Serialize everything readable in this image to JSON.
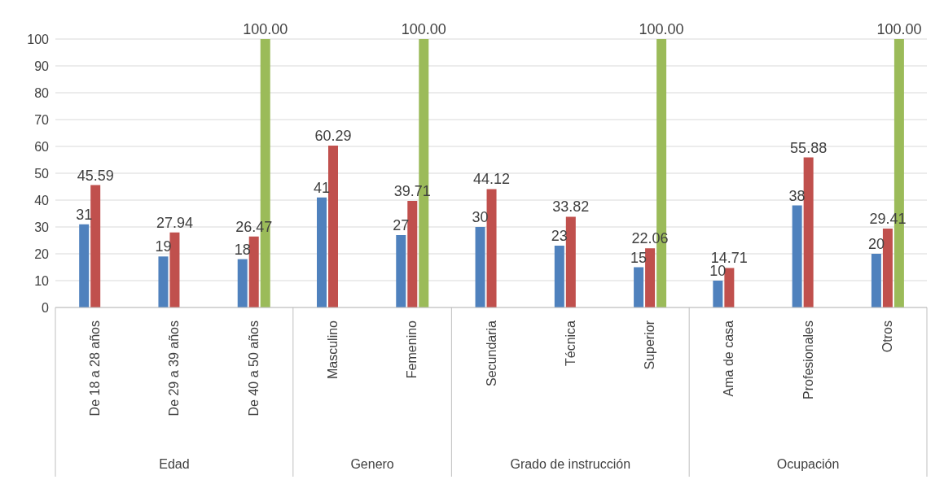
{
  "chart_data": {
    "type": "bar",
    "categories": [
      "De 18 a 28 años",
      "De 29 a 39 años",
      "De 40 a 50 años",
      "Masculino",
      "Femenino",
      "Secundaria",
      "Técnica",
      "Superior",
      "Ama de casa",
      "Profesionales",
      "Otros"
    ],
    "series": [
      {
        "color": "#4f81bd",
        "values": [
          31,
          19,
          18,
          41,
          27,
          30,
          23,
          15,
          10,
          38,
          20
        ],
        "value_labels": [
          "31",
          "19",
          "18",
          "41",
          "27",
          "30",
          "23",
          "15",
          "10",
          "38",
          "20"
        ]
      },
      {
        "color": "#c0504d",
        "values": [
          45.59,
          27.94,
          26.47,
          60.29,
          39.71,
          44.12,
          33.82,
          22.06,
          14.71,
          55.88,
          29.41
        ],
        "value_labels": [
          "45.59",
          "27.94",
          "26.47",
          "60.29",
          "39.71",
          "44.12",
          "33.82",
          "22.06",
          "14.71",
          "55.88",
          "29.41"
        ]
      },
      {
        "color": "#9bbb59",
        "values": [
          null,
          null,
          100,
          null,
          100,
          null,
          null,
          100,
          null,
          null,
          100
        ],
        "value_labels": [
          null,
          null,
          "100.00",
          null,
          "100.00",
          null,
          null,
          "100.00",
          null,
          null,
          "100.00"
        ]
      }
    ],
    "annotations": [
      "Edad",
      "Genero",
      "Grado de instrucción",
      "Ocupación"
    ],
    "ylim": [
      0,
      100
    ],
    "yticks": [
      0,
      10,
      20,
      30,
      40,
      50,
      60,
      70,
      80,
      90,
      100
    ],
    "grid": "y",
    "legend": false
  }
}
